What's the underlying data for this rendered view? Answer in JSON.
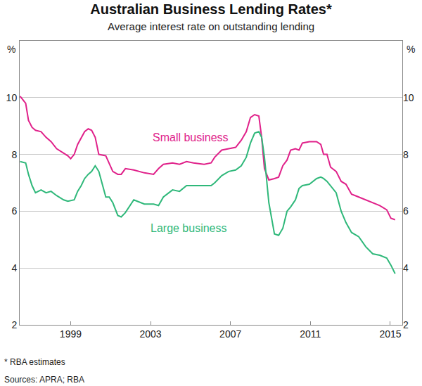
{
  "chart_data": {
    "type": "line",
    "title": "Australian Business Lending Rates*",
    "subtitle": "Average interest rate on outstanding lending",
    "y_label": "%",
    "footnotes": [
      "* RBA estimates",
      "Sources: APRA; RBA"
    ],
    "x": [
      1996.47,
      1996.64,
      1996.75,
      1996.89,
      1997.07,
      1997.24,
      1997.52,
      1997.77,
      1998.02,
      1998.3,
      1998.65,
      1998.86,
      1999.0,
      1999.18,
      1999.35,
      1999.53,
      1999.7,
      1999.88,
      2000.05,
      2000.23,
      2000.41,
      2000.76,
      2000.93,
      2001.11,
      2001.36,
      2001.53,
      2001.74,
      2002.16,
      2002.69,
      2003.15,
      2003.4,
      2003.64,
      2004.1,
      2004.45,
      2004.8,
      2005.15,
      2005.68,
      2006.03,
      2006.21,
      2006.56,
      2006.91,
      2007.26,
      2007.54,
      2007.79,
      2008.0,
      2008.21,
      2008.42,
      2008.56,
      2008.7,
      2008.92,
      2009.2,
      2009.41,
      2009.62,
      2009.83,
      2010.01,
      2010.25,
      2010.43,
      2010.6,
      2010.95,
      2011.31,
      2011.52,
      2011.66,
      2011.83,
      2012.01,
      2012.29,
      2012.54,
      2012.78,
      2013.06,
      2013.42,
      2013.77,
      2014.12,
      2014.47,
      2014.82,
      2015.03,
      2015.24
    ],
    "series": [
      {
        "name": "Small business",
        "color": "#e0218a",
        "line_style": "solid",
        "values": [
          10.05,
          9.9,
          9.8,
          9.2,
          8.95,
          8.85,
          8.8,
          8.6,
          8.45,
          8.2,
          8.05,
          7.95,
          7.85,
          8.0,
          8.35,
          8.6,
          8.8,
          8.9,
          8.85,
          8.6,
          8.0,
          7.95,
          7.7,
          7.4,
          7.3,
          7.3,
          7.5,
          7.45,
          7.35,
          7.3,
          7.5,
          7.65,
          7.7,
          7.65,
          7.75,
          7.7,
          7.65,
          7.7,
          7.9,
          8.15,
          8.2,
          8.25,
          8.5,
          8.8,
          9.3,
          9.4,
          9.35,
          8.6,
          7.5,
          7.1,
          7.15,
          7.2,
          7.6,
          7.8,
          8.15,
          8.2,
          8.15,
          8.4,
          8.45,
          8.45,
          8.35,
          8.0,
          8.0,
          7.55,
          7.4,
          7.05,
          6.95,
          6.6,
          6.5,
          6.4,
          6.3,
          6.2,
          6.05,
          5.75,
          5.7
        ]
      },
      {
        "name": "Large business",
        "color": "#2fb87a",
        "line_style": "solid",
        "values": [
          7.75,
          7.72,
          7.7,
          7.3,
          6.9,
          6.65,
          6.75,
          6.65,
          6.7,
          6.55,
          6.4,
          6.35,
          6.38,
          6.4,
          6.7,
          6.9,
          7.15,
          7.3,
          7.4,
          7.6,
          7.4,
          6.5,
          6.5,
          6.3,
          5.85,
          5.8,
          5.95,
          6.4,
          6.25,
          6.25,
          6.2,
          6.5,
          6.75,
          6.7,
          6.9,
          6.9,
          6.9,
          6.9,
          7.0,
          7.25,
          7.4,
          7.45,
          7.6,
          7.9,
          8.4,
          8.75,
          8.8,
          8.6,
          7.9,
          6.3,
          5.2,
          5.15,
          5.4,
          6.0,
          6.15,
          6.4,
          6.8,
          6.9,
          6.95,
          7.15,
          7.2,
          7.15,
          7.05,
          6.9,
          6.65,
          6.0,
          5.6,
          5.25,
          5.1,
          4.75,
          4.5,
          4.45,
          4.35,
          4.1,
          3.8
        ]
      }
    ],
    "annotations": [
      {
        "text": "Small business",
        "x": 2005.0,
        "y": 8.6
      },
      {
        "text": "Large business",
        "x": 2004.9,
        "y": 5.4
      }
    ],
    "xlim": [
      1996.45,
      2015.6
    ],
    "xticks": [
      1999,
      2003,
      2007,
      2011,
      2015
    ],
    "ylim": [
      2,
      12
    ],
    "yticks": [
      2,
      4,
      6,
      8,
      10
    ],
    "grid": true
  }
}
